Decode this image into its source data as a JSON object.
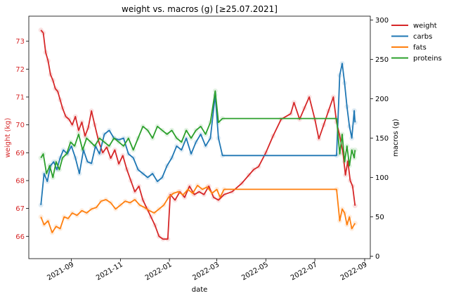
{
  "chart_data": {
    "type": "line",
    "title": "weight vs. macros (g) [≥25.07.2021]",
    "xlabel": "date",
    "ylabel_left": "weight (kg)",
    "ylabel_right": "macros (g)",
    "x_range": [
      "2021-07-10",
      "2022-09-08"
    ],
    "ylim_left": [
      65.2,
      73.9
    ],
    "ylim_right": [
      -3,
      305
    ],
    "x_ticks": [
      "2021-09",
      "2021-11",
      "2022-01",
      "2022-03",
      "2022-05",
      "2022-07",
      "2022-09"
    ],
    "y_ticks_left": [
      "66",
      "67",
      "68",
      "69",
      "70",
      "71",
      "72",
      "73"
    ],
    "y_ticks_right": [
      "0",
      "50",
      "100",
      "150",
      "200",
      "250",
      "300"
    ],
    "grid": false,
    "legend_position": "outside-right",
    "left_axis_color": "#d62728",
    "series": [
      {
        "name": "weight",
        "axis": "left",
        "color": "#d62728",
        "points": [
          [
            "2021-07-25",
            73.4
          ],
          [
            "2021-07-28",
            73.3
          ],
          [
            "2021-07-31",
            72.6
          ],
          [
            "2021-08-03",
            72.3
          ],
          [
            "2021-08-06",
            71.8
          ],
          [
            "2021-08-09",
            71.6
          ],
          [
            "2021-08-12",
            71.3
          ],
          [
            "2021-08-15",
            71.2
          ],
          [
            "2021-08-18",
            70.9
          ],
          [
            "2021-08-21",
            70.6
          ],
          [
            "2021-08-25",
            70.3
          ],
          [
            "2021-08-29",
            70.2
          ],
          [
            "2021-09-02",
            70.0
          ],
          [
            "2021-09-06",
            70.3
          ],
          [
            "2021-09-10",
            69.8
          ],
          [
            "2021-09-14",
            70.1
          ],
          [
            "2021-09-18",
            69.6
          ],
          [
            "2021-09-22",
            69.9
          ],
          [
            "2021-09-26",
            70.5
          ],
          [
            "2021-09-30",
            70.0
          ],
          [
            "2021-10-05",
            69.4
          ],
          [
            "2021-10-10",
            69.0
          ],
          [
            "2021-10-15",
            69.2
          ],
          [
            "2021-10-20",
            68.8
          ],
          [
            "2021-10-25",
            69.1
          ],
          [
            "2021-10-30",
            68.6
          ],
          [
            "2021-11-04",
            68.9
          ],
          [
            "2021-11-09",
            68.4
          ],
          [
            "2021-11-14",
            68.0
          ],
          [
            "2021-11-19",
            67.6
          ],
          [
            "2021-11-24",
            67.8
          ],
          [
            "2021-11-29",
            67.3
          ],
          [
            "2021-12-04",
            67.0
          ],
          [
            "2021-12-09",
            66.7
          ],
          [
            "2021-12-14",
            66.4
          ],
          [
            "2021-12-19",
            66.0
          ],
          [
            "2021-12-24",
            65.9
          ],
          [
            "2021-12-30",
            65.9
          ],
          [
            "2022-01-02",
            67.5
          ],
          [
            "2022-01-08",
            67.3
          ],
          [
            "2022-01-14",
            67.6
          ],
          [
            "2022-01-20",
            67.4
          ],
          [
            "2022-01-26",
            67.8
          ],
          [
            "2022-02-01",
            67.5
          ],
          [
            "2022-02-07",
            67.6
          ],
          [
            "2022-02-13",
            67.5
          ],
          [
            "2022-02-19",
            67.8
          ],
          [
            "2022-02-25",
            67.4
          ],
          [
            "2022-03-03",
            67.3
          ],
          [
            "2022-03-10",
            67.5
          ],
          [
            "2022-03-20",
            67.6
          ],
          [
            "2022-04-01",
            67.9
          ],
          [
            "2022-04-10",
            68.2
          ],
          [
            "2022-04-16",
            68.4
          ],
          [
            "2022-04-22",
            68.5
          ],
          [
            "2022-05-01",
            69.0
          ],
          [
            "2022-05-10",
            69.6
          ],
          [
            "2022-05-20",
            70.2
          ],
          [
            "2022-06-01",
            70.4
          ],
          [
            "2022-06-05",
            70.8
          ],
          [
            "2022-06-12",
            70.2
          ],
          [
            "2022-06-18",
            70.6
          ],
          [
            "2022-06-24",
            71.0
          ],
          [
            "2022-07-01",
            70.2
          ],
          [
            "2022-07-06",
            69.5
          ],
          [
            "2022-07-12",
            70.0
          ],
          [
            "2022-07-18",
            70.5
          ],
          [
            "2022-07-24",
            71.0
          ],
          [
            "2022-07-28",
            70.1
          ],
          [
            "2022-08-01",
            69.6
          ],
          [
            "2022-08-05",
            69.0
          ],
          [
            "2022-08-08",
            68.2
          ],
          [
            "2022-08-11",
            68.7
          ],
          [
            "2022-08-14",
            68.0
          ],
          [
            "2022-08-17",
            67.8
          ],
          [
            "2022-08-20",
            67.1
          ]
        ]
      },
      {
        "name": "carbs",
        "axis": "right",
        "color": "#1f77b4",
        "points": [
          [
            "2021-07-25",
            65
          ],
          [
            "2021-07-29",
            105
          ],
          [
            "2021-08-02",
            95
          ],
          [
            "2021-08-06",
            115
          ],
          [
            "2021-08-10",
            120
          ],
          [
            "2021-08-14",
            110
          ],
          [
            "2021-08-18",
            125
          ],
          [
            "2021-08-22",
            135
          ],
          [
            "2021-08-27",
            130
          ],
          [
            "2021-09-01",
            140
          ],
          [
            "2021-09-06",
            125
          ],
          [
            "2021-09-11",
            105
          ],
          [
            "2021-09-16",
            135
          ],
          [
            "2021-09-21",
            120
          ],
          [
            "2021-09-26",
            118
          ],
          [
            "2021-10-01",
            140
          ],
          [
            "2021-10-06",
            130
          ],
          [
            "2021-10-12",
            155
          ],
          [
            "2021-10-18",
            160
          ],
          [
            "2021-10-24",
            150
          ],
          [
            "2021-10-30",
            148
          ],
          [
            "2021-11-05",
            150
          ],
          [
            "2021-11-11",
            130
          ],
          [
            "2021-11-17",
            125
          ],
          [
            "2021-11-23",
            110
          ],
          [
            "2021-11-29",
            105
          ],
          [
            "2021-12-05",
            100
          ],
          [
            "2021-12-11",
            105
          ],
          [
            "2021-12-17",
            95
          ],
          [
            "2021-12-23",
            100
          ],
          [
            "2021-12-29",
            115
          ],
          [
            "2022-01-04",
            125
          ],
          [
            "2022-01-10",
            140
          ],
          [
            "2022-01-16",
            135
          ],
          [
            "2022-01-22",
            150
          ],
          [
            "2022-01-28",
            130
          ],
          [
            "2022-02-03",
            145
          ],
          [
            "2022-02-09",
            155
          ],
          [
            "2022-02-15",
            140
          ],
          [
            "2022-02-21",
            150
          ],
          [
            "2022-02-27",
            205
          ],
          [
            "2022-03-03",
            150
          ],
          [
            "2022-03-08",
            128
          ],
          [
            "2022-07-28",
            128
          ],
          [
            "2022-08-01",
            230
          ],
          [
            "2022-08-04",
            245
          ],
          [
            "2022-08-07",
            220
          ],
          [
            "2022-08-10",
            190
          ],
          [
            "2022-08-13",
            165
          ],
          [
            "2022-08-16",
            150
          ],
          [
            "2022-08-19",
            185
          ],
          [
            "2022-08-20",
            170
          ]
        ]
      },
      {
        "name": "fats",
        "axis": "right",
        "color": "#ff7f0e",
        "points": [
          [
            "2021-07-25",
            50
          ],
          [
            "2021-07-29",
            40
          ],
          [
            "2021-08-03",
            45
          ],
          [
            "2021-08-08",
            30
          ],
          [
            "2021-08-13",
            38
          ],
          [
            "2021-08-18",
            35
          ],
          [
            "2021-08-23",
            50
          ],
          [
            "2021-08-28",
            48
          ],
          [
            "2021-09-02",
            55
          ],
          [
            "2021-09-08",
            52
          ],
          [
            "2021-09-14",
            58
          ],
          [
            "2021-09-20",
            55
          ],
          [
            "2021-09-26",
            60
          ],
          [
            "2021-10-02",
            62
          ],
          [
            "2021-10-08",
            70
          ],
          [
            "2021-10-14",
            72
          ],
          [
            "2021-10-20",
            68
          ],
          [
            "2021-10-26",
            60
          ],
          [
            "2021-11-01",
            65
          ],
          [
            "2021-11-07",
            70
          ],
          [
            "2021-11-13",
            68
          ],
          [
            "2021-11-19",
            72
          ],
          [
            "2021-11-25",
            65
          ],
          [
            "2021-12-01",
            62
          ],
          [
            "2021-12-07",
            58
          ],
          [
            "2021-12-13",
            55
          ],
          [
            "2021-12-19",
            60
          ],
          [
            "2021-12-25",
            65
          ],
          [
            "2021-12-31",
            75
          ],
          [
            "2022-01-06",
            80
          ],
          [
            "2022-01-12",
            82
          ],
          [
            "2022-01-18",
            78
          ],
          [
            "2022-01-24",
            85
          ],
          [
            "2022-01-30",
            80
          ],
          [
            "2022-02-05",
            90
          ],
          [
            "2022-02-11",
            85
          ],
          [
            "2022-02-17",
            88
          ],
          [
            "2022-02-23",
            80
          ],
          [
            "2022-03-01",
            85
          ],
          [
            "2022-03-05",
            75
          ],
          [
            "2022-03-10",
            85
          ],
          [
            "2022-07-28",
            85
          ],
          [
            "2022-08-01",
            45
          ],
          [
            "2022-08-04",
            60
          ],
          [
            "2022-08-07",
            55
          ],
          [
            "2022-08-10",
            40
          ],
          [
            "2022-08-13",
            50
          ],
          [
            "2022-08-16",
            35
          ],
          [
            "2022-08-20",
            42
          ]
        ]
      },
      {
        "name": "proteins",
        "axis": "right",
        "color": "#2ca02c",
        "points": [
          [
            "2021-07-25",
            125
          ],
          [
            "2021-07-28",
            130
          ],
          [
            "2021-08-01",
            105
          ],
          [
            "2021-08-05",
            115
          ],
          [
            "2021-08-09",
            100
          ],
          [
            "2021-08-13",
            120
          ],
          [
            "2021-08-17",
            110
          ],
          [
            "2021-08-21",
            125
          ],
          [
            "2021-08-26",
            130
          ],
          [
            "2021-08-31",
            145
          ],
          [
            "2021-09-05",
            140
          ],
          [
            "2021-09-10",
            155
          ],
          [
            "2021-09-15",
            135
          ],
          [
            "2021-09-20",
            150
          ],
          [
            "2021-09-25",
            145
          ],
          [
            "2021-09-30",
            140
          ],
          [
            "2021-10-06",
            150
          ],
          [
            "2021-10-12",
            145
          ],
          [
            "2021-10-18",
            140
          ],
          [
            "2021-10-24",
            150
          ],
          [
            "2021-10-30",
            145
          ],
          [
            "2021-11-05",
            140
          ],
          [
            "2021-11-11",
            150
          ],
          [
            "2021-11-17",
            135
          ],
          [
            "2021-11-23",
            150
          ],
          [
            "2021-11-29",
            165
          ],
          [
            "2021-12-05",
            160
          ],
          [
            "2021-12-11",
            150
          ],
          [
            "2021-12-17",
            165
          ],
          [
            "2021-12-23",
            160
          ],
          [
            "2021-12-29",
            155
          ],
          [
            "2022-01-04",
            160
          ],
          [
            "2022-01-10",
            150
          ],
          [
            "2022-01-16",
            145
          ],
          [
            "2022-01-22",
            160
          ],
          [
            "2022-01-28",
            150
          ],
          [
            "2022-02-03",
            160
          ],
          [
            "2022-02-09",
            165
          ],
          [
            "2022-02-15",
            155
          ],
          [
            "2022-02-21",
            170
          ],
          [
            "2022-02-27",
            210
          ],
          [
            "2022-03-03",
            170
          ],
          [
            "2022-03-08",
            175
          ],
          [
            "2022-07-28",
            175
          ],
          [
            "2022-08-01",
            130
          ],
          [
            "2022-08-04",
            155
          ],
          [
            "2022-08-07",
            120
          ],
          [
            "2022-08-10",
            140
          ],
          [
            "2022-08-13",
            115
          ],
          [
            "2022-08-16",
            135
          ],
          [
            "2022-08-19",
            125
          ],
          [
            "2022-08-20",
            135
          ]
        ]
      }
    ]
  }
}
